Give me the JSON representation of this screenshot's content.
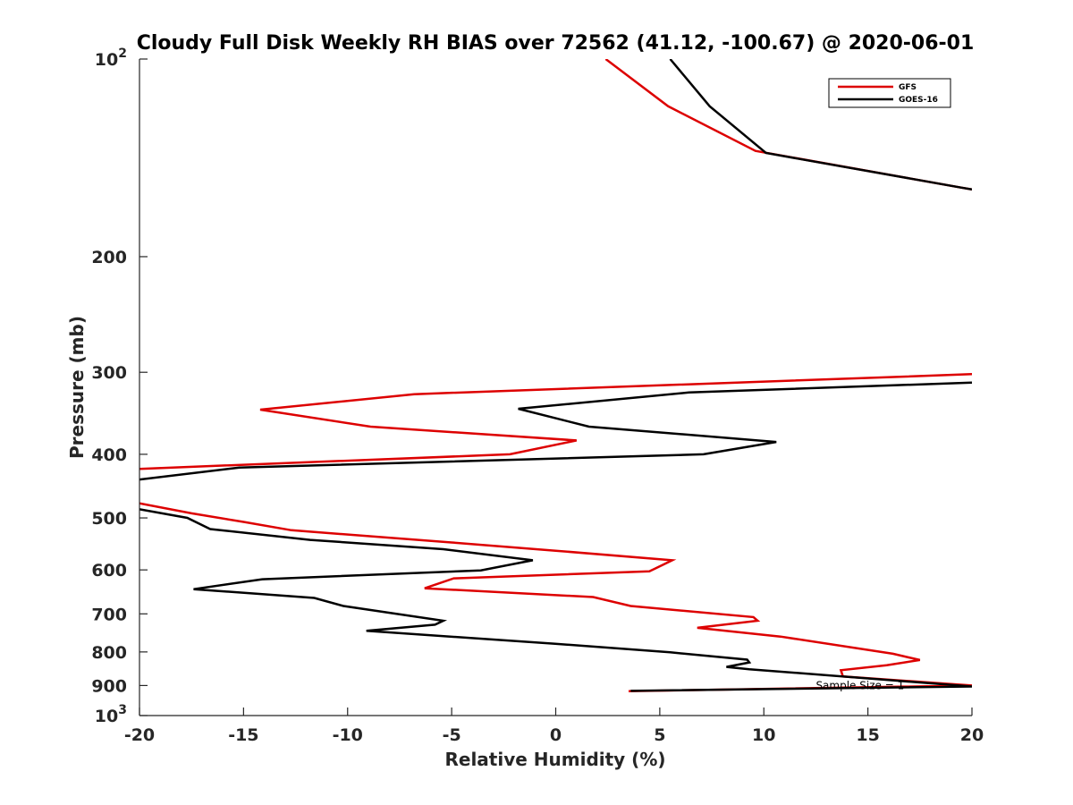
{
  "chart_data": {
    "type": "line",
    "title": "Cloudy Full Disk Weekly RH BIAS over 72562 (41.12, -100.67) @ 2020-06-01",
    "xlabel": "Relative Humidity (%)",
    "ylabel": "Pressure (mb)",
    "xlim": [
      -20,
      20
    ],
    "ylim": [
      100,
      1000
    ],
    "yscale": "log",
    "y_reversed": true,
    "x_ticks": [
      {
        "value": -20,
        "label": "-20"
      },
      {
        "value": -15,
        "label": "-15"
      },
      {
        "value": -10,
        "label": "-10"
      },
      {
        "value": -5,
        "label": "-5"
      },
      {
        "value": 0,
        "label": "0"
      },
      {
        "value": 5,
        "label": "5"
      },
      {
        "value": 10,
        "label": "10"
      },
      {
        "value": 15,
        "label": "15"
      },
      {
        "value": 20,
        "label": "20"
      }
    ],
    "y_ticks": [
      {
        "value": 100,
        "base": "10",
        "exp": "2"
      },
      {
        "value": 200,
        "label": "200"
      },
      {
        "value": 300,
        "label": "300"
      },
      {
        "value": 400,
        "label": "400"
      },
      {
        "value": 500,
        "label": "500"
      },
      {
        "value": 600,
        "label": "600"
      },
      {
        "value": 700,
        "label": "700"
      },
      {
        "value": 800,
        "label": "800"
      },
      {
        "value": 900,
        "label": "900"
      },
      {
        "value": 1000,
        "base": "10",
        "exp": "3"
      }
    ],
    "grid": false,
    "legend_position": "top-right",
    "series": [
      {
        "name": "GFS",
        "color": "#dd0000",
        "points": [
          [
            2.4,
            100
          ],
          [
            5.4,
            118
          ],
          [
            9.6,
            138
          ],
          [
            19.5,
            157
          ],
          [
            20.0,
            158
          ],
          [
            null,
            null
          ],
          [
            20.0,
            302
          ],
          [
            -6.8,
            324
          ],
          [
            -14.2,
            342
          ],
          [
            -8.9,
            363
          ],
          [
            1.0,
            381
          ],
          [
            -2.2,
            400
          ],
          [
            -20.0,
            421
          ],
          [
            null,
            null
          ],
          [
            -20.0,
            475
          ],
          [
            -17.5,
            492
          ],
          [
            -15.0,
            507
          ],
          [
            -12.7,
            522
          ],
          [
            -5.0,
            545
          ],
          [
            0.0,
            561
          ],
          [
            5.6,
            580
          ],
          [
            4.5,
            603
          ],
          [
            -4.9,
            618
          ],
          [
            -6.3,
            640
          ],
          [
            1.8,
            660
          ],
          [
            3.6,
            681
          ],
          [
            9.5,
            708
          ],
          [
            9.7,
            717
          ],
          [
            6.8,
            735
          ],
          [
            10.8,
            758
          ],
          [
            16.2,
            805
          ],
          [
            17.5,
            823
          ],
          [
            15.9,
            838
          ],
          [
            13.7,
            853
          ],
          [
            13.8,
            872
          ],
          [
            20.0,
            900
          ],
          [
            3.5,
            918
          ]
        ]
      },
      {
        "name": "GOES-16",
        "color": "#000000",
        "points": [
          [
            5.5,
            100
          ],
          [
            7.4,
            118
          ],
          [
            10.1,
            139
          ],
          [
            19.5,
            157
          ],
          [
            20.0,
            158
          ],
          [
            null,
            null
          ],
          [
            20.0,
            311
          ],
          [
            6.4,
            322
          ],
          [
            -1.8,
            341
          ],
          [
            1.6,
            363
          ],
          [
            10.6,
            383
          ],
          [
            7.1,
            400
          ],
          [
            -15.2,
            419
          ],
          [
            -20.0,
            437
          ],
          [
            null,
            null
          ],
          [
            -20.0,
            485
          ],
          [
            -17.7,
            500
          ],
          [
            -16.6,
            520
          ],
          [
            -11.8,
            540
          ],
          [
            -5.4,
            558
          ],
          [
            -1.1,
            580
          ],
          [
            -3.6,
            601
          ],
          [
            -14.1,
            620
          ],
          [
            -17.4,
            642
          ],
          [
            -11.6,
            662
          ],
          [
            -10.2,
            681
          ],
          [
            -5.4,
            717
          ],
          [
            -5.8,
            727
          ],
          [
            -9.1,
            743
          ],
          [
            -0.1,
            777
          ],
          [
            5.5,
            801
          ],
          [
            9.2,
            822
          ],
          [
            9.3,
            830
          ],
          [
            8.2,
            843
          ],
          [
            9.3,
            850
          ],
          [
            20.0,
            903
          ],
          [
            3.6,
            917
          ]
        ]
      }
    ],
    "annotations": [
      {
        "text": "Sample Size = 1",
        "x": 12.5,
        "y": 900
      }
    ]
  }
}
